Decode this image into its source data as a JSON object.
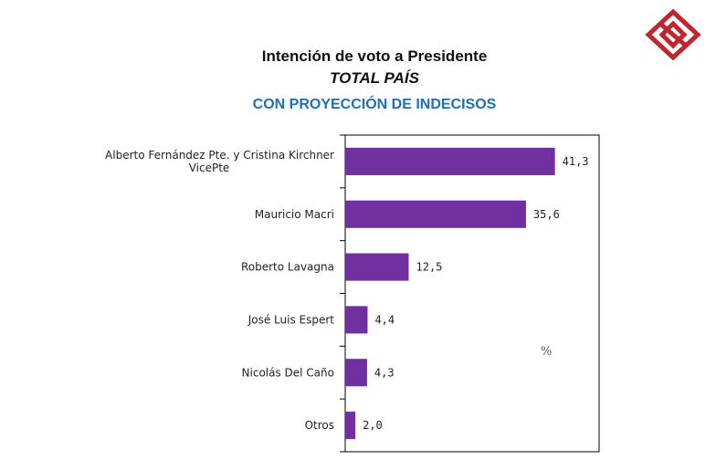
{
  "header": {
    "title_line1": "Intención de voto a Presidente",
    "title_line2": "TOTAL PAÍS",
    "title_line3": "CON PROYECCIÓN DE INDECISOS"
  },
  "logo": {
    "icon": "diamond-logo-icon",
    "color": "#c0262d"
  },
  "chart_data": {
    "type": "bar",
    "orientation": "horizontal",
    "categories": [
      [
        "Alberto Fernández Pte. y Cristina Kirchner",
        "VicePte"
      ],
      [
        "Mauricio Macri"
      ],
      [
        "Roberto Lavagna"
      ],
      [
        "José Luis Espert"
      ],
      [
        "Nicolás Del Caño"
      ],
      [
        "Otros"
      ]
    ],
    "values": [
      41.3,
      35.6,
      12.5,
      4.4,
      4.3,
      2.0
    ],
    "value_labels": [
      "41,3",
      "35,6",
      "12,5",
      "4,4",
      "4,3",
      "2,0"
    ],
    "unit_label": "%",
    "xlim": [
      0,
      50
    ],
    "grid": false,
    "bar_color": "#7030a0"
  }
}
